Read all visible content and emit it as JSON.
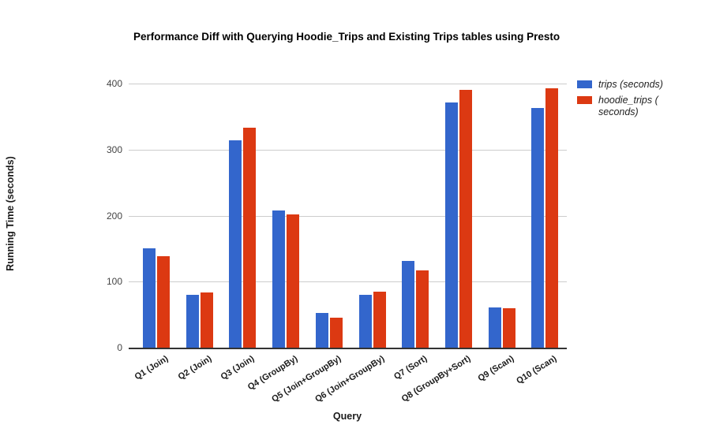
{
  "title": "Performance Diff with Querying Hoodie_Trips and Existing Trips tables using Presto",
  "chart_data": {
    "type": "bar",
    "title": "Performance Diff with Querying Hoodie_Trips and Existing Trips tables using Presto",
    "xlabel": "Query",
    "ylabel": "Running Time (seconds)",
    "ylim": [
      0,
      400
    ],
    "yticks": [
      0,
      100,
      200,
      300,
      400
    ],
    "grid": true,
    "legend_position": "right",
    "categories": [
      "Q1 (Join)",
      "Q2 (Join)",
      "Q3 (Join)",
      "Q4 (GroupBy)",
      "Q5 (Join+GroupBy)",
      "Q6 (Join+GroupBy)",
      "Q7 (Sort)",
      "Q8 (GroupBy+Sort)",
      "Q9 (Scan)",
      "Q10 (Scan)"
    ],
    "series": [
      {
        "name": "trips (seconds)",
        "color": "#3366cc",
        "values": [
          150,
          80,
          314,
          208,
          52,
          80,
          131,
          371,
          61,
          363
        ]
      },
      {
        "name": "hoodie_trips (seconds)",
        "color": "#dc3912",
        "values": [
          138,
          84,
          333,
          202,
          45,
          85,
          117,
          391,
          60,
          393
        ]
      }
    ],
    "legend": [
      {
        "label": "trips (seconds)",
        "color": "#3366cc",
        "lines": [
          "trips (seconds)"
        ]
      },
      {
        "label": "hoodie_trips (seconds)",
        "color": "#dc3912",
        "lines": [
          "hoodie_trips (",
          "seconds)"
        ]
      }
    ]
  },
  "colors": {
    "series_blue": "#3366cc",
    "series_red": "#dc3912",
    "gridline": "#cccccc",
    "axis_line": "#333333",
    "tick_text": "#444444"
  }
}
